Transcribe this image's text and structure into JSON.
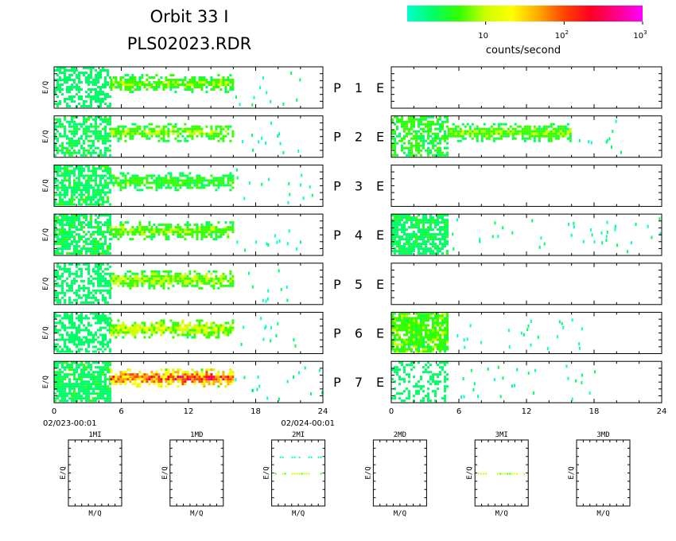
{
  "header": {
    "title_line1": "Orbit 33 I",
    "title_line2": "PLS02023.RDR"
  },
  "colorbar": {
    "label": "counts/second",
    "ticks": [
      {
        "base": "10",
        "exp": ""
      },
      {
        "base": "10",
        "exp": "2"
      },
      {
        "base": "10",
        "exp": "3"
      }
    ],
    "colors": [
      "#00ffcc",
      "#00ff66",
      "#33ff00",
      "#ccff00",
      "#ffff00",
      "#ffaa00",
      "#ff4400",
      "#ff0022",
      "#ff0088",
      "#ff00ff"
    ]
  },
  "panels": {
    "ylabel": "E/Q",
    "row_labels": [
      {
        "p": "P",
        "n": "1",
        "e": "E"
      },
      {
        "p": "P",
        "n": "2",
        "e": "E"
      },
      {
        "p": "P",
        "n": "3",
        "e": "E"
      },
      {
        "p": "P",
        "n": "4",
        "e": "E"
      },
      {
        "p": "P",
        "n": "5",
        "e": "E"
      },
      {
        "p": "P",
        "n": "6",
        "e": "E"
      },
      {
        "p": "P",
        "n": "7",
        "e": "E"
      }
    ],
    "x_ticks": [
      "0",
      "6",
      "12",
      "18",
      "24"
    ],
    "time_start": "02/023-00:01",
    "time_end": "02/024-00:01"
  },
  "small_panels": {
    "titles": [
      "1MI",
      "1MD",
      "2MI",
      "2MD",
      "3MI",
      "3MD"
    ],
    "ylabel": "E/Q",
    "xlabel": "M/Q"
  },
  "chart_data": {
    "type": "heatmap",
    "x_unit": "hours",
    "xlim": [
      0,
      24
    ],
    "color_scale": "log",
    "color_range_counts_per_second": [
      1,
      1000
    ],
    "colormap": "cyan-green-yellow-red-magenta",
    "left_column": [
      {
        "row": "1",
        "bands": [
          {
            "x": [
              0,
              5
            ],
            "level": 0.1,
            "fill": 0.55
          },
          {
            "x": [
              5,
              16
            ],
            "level": 0.3,
            "fill": 0.9
          }
        ],
        "sparse_to": 22
      },
      {
        "row": "2",
        "bands": [
          {
            "x": [
              0,
              5
            ],
            "level": 0.15,
            "fill": 0.6
          },
          {
            "x": [
              5,
              16
            ],
            "level": 0.3,
            "fill": 0.85
          }
        ],
        "sparse_to": 22
      },
      {
        "row": "3",
        "bands": [
          {
            "x": [
              0,
              5
            ],
            "level": 0.15,
            "fill": 0.7
          },
          {
            "x": [
              5,
              16
            ],
            "level": 0.25,
            "fill": 0.9
          }
        ],
        "sparse_to": 23
      },
      {
        "row": "4",
        "bands": [
          {
            "x": [
              0,
              5
            ],
            "level": 0.15,
            "fill": 0.7
          },
          {
            "x": [
              5,
              16
            ],
            "level": 0.3,
            "fill": 0.9
          }
        ],
        "sparse_to": 22
      },
      {
        "row": "5",
        "bands": [
          {
            "x": [
              0,
              5
            ],
            "level": 0.1,
            "fill": 0.55
          },
          {
            "x": [
              5,
              16
            ],
            "level": 0.35,
            "fill": 0.95
          }
        ],
        "sparse_to": 21
      },
      {
        "row": "6",
        "bands": [
          {
            "x": [
              0,
              5
            ],
            "level": 0.12,
            "fill": 0.6
          },
          {
            "x": [
              5,
              16
            ],
            "level": 0.4,
            "fill": 0.95
          }
        ],
        "sparse_to": 22
      },
      {
        "row": "7",
        "bands": [
          {
            "x": [
              0,
              5
            ],
            "level": 0.15,
            "fill": 0.75
          },
          {
            "x": [
              5,
              16
            ],
            "level": 0.75,
            "fill": 1.0
          }
        ],
        "sparse_to": 24
      }
    ],
    "right_column": [
      {
        "row": "1",
        "bands": [],
        "sparse_to": 0
      },
      {
        "row": "2",
        "bands": [
          {
            "x": [
              0,
              5
            ],
            "level": 0.2,
            "fill": 0.6
          },
          {
            "x": [
              5,
              16
            ],
            "level": 0.3,
            "fill": 1.0
          }
        ],
        "sparse_to": 21
      },
      {
        "row": "3",
        "bands": [],
        "sparse_to": 0
      },
      {
        "row": "4",
        "bands": [
          {
            "x": [
              0,
              5
            ],
            "level": 0.15,
            "fill": 0.75
          }
        ],
        "sparse_to": 24
      },
      {
        "row": "5",
        "bands": [],
        "sparse_to": 0
      },
      {
        "row": "6",
        "bands": [
          {
            "x": [
              0,
              5
            ],
            "level": 0.25,
            "fill": 0.85
          }
        ],
        "sparse_to": 17
      },
      {
        "row": "7",
        "bands": [
          {
            "x": [
              0,
              5
            ],
            "level": 0.1,
            "fill": 0.35
          }
        ],
        "sparse_to": 18
      }
    ],
    "small": [
      {
        "name": "1MI",
        "lines": []
      },
      {
        "name": "1MD",
        "lines": []
      },
      {
        "name": "2MI",
        "lines": [
          {
            "y_frac": 0.25,
            "level": 0.05
          },
          {
            "y_frac": 0.5,
            "level": 0.3
          }
        ]
      },
      {
        "name": "2MD",
        "lines": []
      },
      {
        "name": "3MI",
        "lines": [
          {
            "y_frac": 0.5,
            "level": 0.35
          }
        ]
      },
      {
        "name": "3MD",
        "lines": []
      }
    ]
  }
}
